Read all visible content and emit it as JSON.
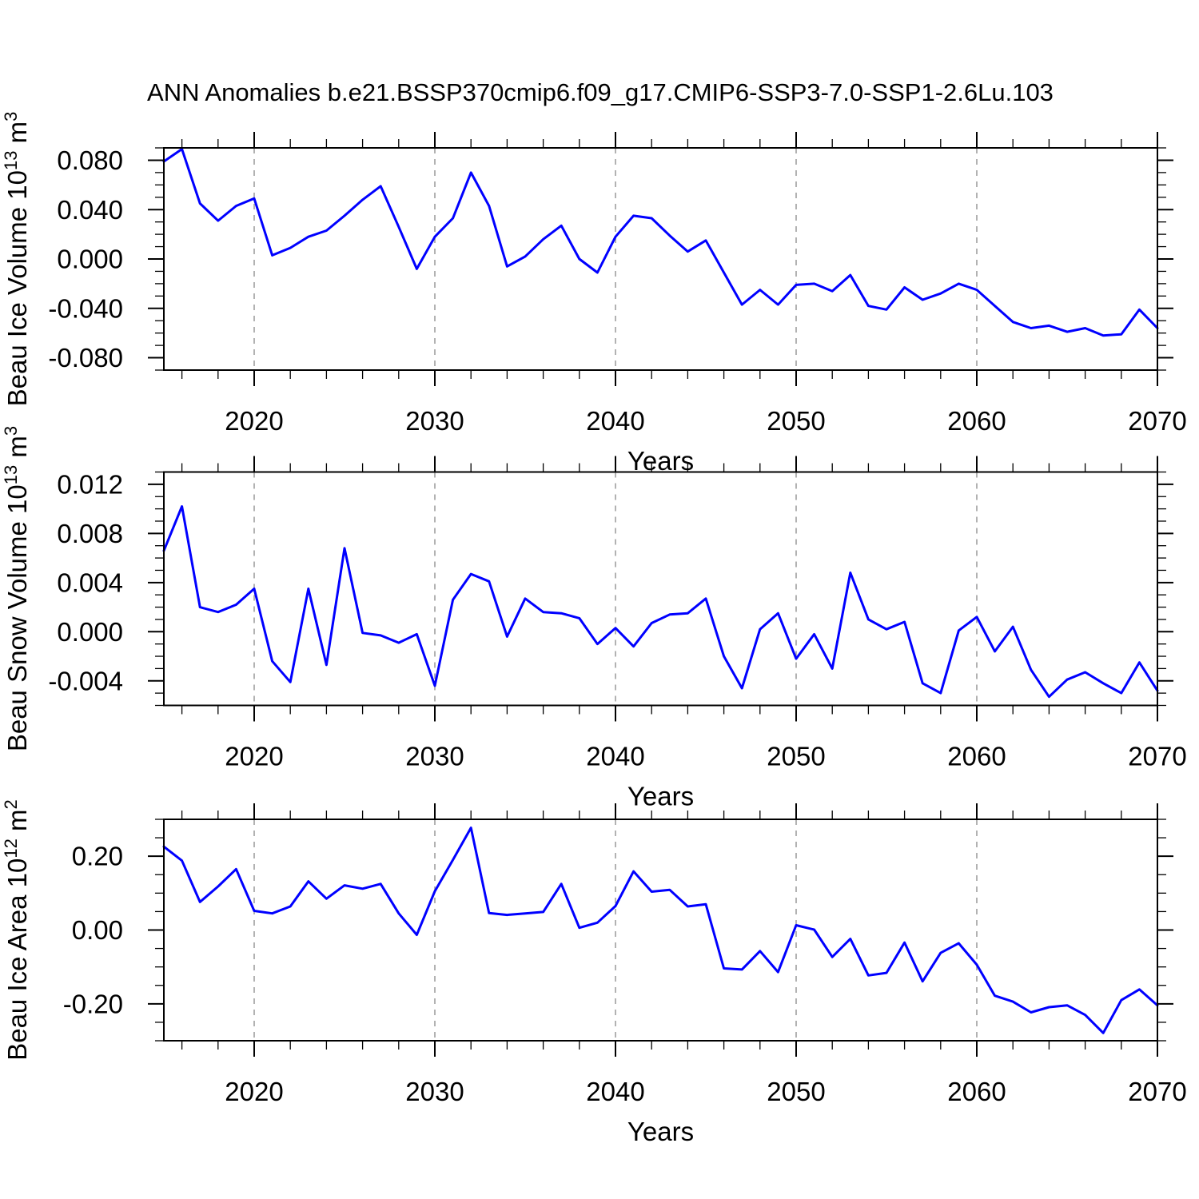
{
  "title": "ANN Anomalies b.e21.BSSP370cmip6.f09_g17.CMIP6-SSP3-7.0-SSP1-2.6Lu.103",
  "line_color": "#0000ff",
  "grid_color": "#999999",
  "frame_color": "#000000",
  "chart_data": [
    {
      "type": "line",
      "name": "beau-ice-volume",
      "ylabel_text": "Beau Ice Volume 10^13 m^3",
      "ylabel_parts": [
        {
          "t": "Beau Ice Volume 10"
        },
        {
          "t": "13",
          "sup": true
        },
        {
          "t": " m"
        },
        {
          "t": "3",
          "sup": true
        }
      ],
      "xlabel": "Years",
      "x": [
        2015,
        2016,
        2017,
        2018,
        2019,
        2020,
        2021,
        2022,
        2023,
        2024,
        2025,
        2026,
        2027,
        2028,
        2029,
        2030,
        2031,
        2032,
        2033,
        2034,
        2035,
        2036,
        2037,
        2038,
        2039,
        2040,
        2041,
        2042,
        2043,
        2044,
        2045,
        2046,
        2047,
        2048,
        2049,
        2050,
        2051,
        2052,
        2053,
        2054,
        2055,
        2056,
        2057,
        2058,
        2059,
        2060,
        2061,
        2062,
        2063,
        2064,
        2065,
        2066,
        2067,
        2068,
        2069,
        2070
      ],
      "values": [
        0.079,
        0.089,
        0.045,
        0.031,
        0.043,
        0.049,
        0.003,
        0.009,
        0.018,
        0.023,
        0.035,
        0.048,
        0.059,
        0.026,
        -0.008,
        0.018,
        0.033,
        0.07,
        0.043,
        -0.006,
        0.002,
        0.016,
        0.027,
        0.0,
        -0.011,
        0.018,
        0.035,
        0.033,
        0.019,
        0.006,
        0.015,
        -0.011,
        -0.037,
        -0.025,
        -0.037,
        -0.021,
        -0.02,
        -0.026,
        -0.013,
        -0.038,
        -0.041,
        -0.023,
        -0.033,
        -0.028,
        -0.02,
        -0.025,
        -0.038,
        -0.051,
        -0.056,
        -0.054,
        -0.059,
        -0.056,
        -0.062,
        -0.061,
        -0.041,
        -0.056
      ],
      "ylim": [
        -0.09,
        0.09
      ],
      "ytick_values": [
        0.08,
        0.04,
        0.0,
        -0.04,
        -0.08
      ],
      "ytick_labels": [
        "0.080",
        "0.040",
        "0.000",
        "-0.040",
        "-0.080"
      ],
      "y_minor_step": 0.01,
      "xlim": [
        2015,
        2070
      ],
      "xtick_values": [
        2020,
        2030,
        2040,
        2050,
        2060,
        2070
      ],
      "xtick_labels": [
        "2020",
        "2030",
        "2040",
        "2050",
        "2060",
        "2070"
      ],
      "x_minor_step": 2,
      "grid_x": [
        2020,
        2030,
        2040,
        2050,
        2060
      ]
    },
    {
      "type": "line",
      "name": "beau-snow-volume",
      "ylabel_text": "Beau Snow Volume 10^13 m^3",
      "ylabel_parts": [
        {
          "t": "Beau Snow Volume 10"
        },
        {
          "t": "13",
          "sup": true
        },
        {
          "t": " m"
        },
        {
          "t": "3",
          "sup": true
        }
      ],
      "xlabel": "Years",
      "x": [
        2015,
        2016,
        2017,
        2018,
        2019,
        2020,
        2021,
        2022,
        2023,
        2024,
        2025,
        2026,
        2027,
        2028,
        2029,
        2030,
        2031,
        2032,
        2033,
        2034,
        2035,
        2036,
        2037,
        2038,
        2039,
        2040,
        2041,
        2042,
        2043,
        2044,
        2045,
        2046,
        2047,
        2048,
        2049,
        2050,
        2051,
        2052,
        2053,
        2054,
        2055,
        2056,
        2057,
        2058,
        2059,
        2060,
        2061,
        2062,
        2063,
        2064,
        2065,
        2066,
        2067,
        2068,
        2069,
        2070
      ],
      "values": [
        0.0066,
        0.0102,
        0.002,
        0.0016,
        0.0022,
        0.0035,
        -0.0024,
        -0.0041,
        0.0035,
        -0.0027,
        0.0068,
        -0.0001,
        -0.0003,
        -0.0009,
        -0.0002,
        -0.0044,
        0.0026,
        0.0047,
        0.0041,
        -0.0004,
        0.0027,
        0.0016,
        0.0015,
        0.0011,
        -0.001,
        0.0003,
        -0.0012,
        0.0007,
        0.0014,
        0.0015,
        0.0027,
        -0.002,
        -0.0046,
        0.0002,
        0.0015,
        -0.0022,
        -0.0002,
        -0.003,
        0.0048,
        0.001,
        0.0002,
        0.0008,
        -0.0042,
        -0.005,
        0.0001,
        0.0012,
        -0.0016,
        0.0004,
        -0.0031,
        -0.0053,
        -0.0039,
        -0.0033,
        -0.0042,
        -0.005,
        -0.0025,
        -0.0048
      ],
      "ylim": [
        -0.006,
        0.013
      ],
      "ytick_values": [
        0.012,
        0.008,
        0.004,
        0.0,
        -0.004
      ],
      "ytick_labels": [
        "0.012",
        "0.008",
        "0.004",
        "0.000",
        "-0.004"
      ],
      "y_minor_step": 0.001,
      "xlim": [
        2015,
        2070
      ],
      "xtick_values": [
        2020,
        2030,
        2040,
        2050,
        2060,
        2070
      ],
      "xtick_labels": [
        "2020",
        "2030",
        "2040",
        "2050",
        "2060",
        "2070"
      ],
      "x_minor_step": 2,
      "grid_x": [
        2020,
        2030,
        2040,
        2050,
        2060
      ]
    },
    {
      "type": "line",
      "name": "beau-ice-area",
      "ylabel_text": "Beau Ice Area 10^12 m^2",
      "ylabel_parts": [
        {
          "t": "Beau Ice Area 10"
        },
        {
          "t": "12",
          "sup": true
        },
        {
          "t": " m"
        },
        {
          "t": "2",
          "sup": true
        }
      ],
      "xlabel": "Years",
      "x": [
        2015,
        2016,
        2017,
        2018,
        2019,
        2020,
        2021,
        2022,
        2023,
        2024,
        2025,
        2026,
        2027,
        2028,
        2029,
        2030,
        2031,
        2032,
        2033,
        2034,
        2035,
        2036,
        2037,
        2038,
        2039,
        2040,
        2041,
        2042,
        2043,
        2044,
        2045,
        2046,
        2047,
        2048,
        2049,
        2050,
        2051,
        2052,
        2053,
        2054,
        2055,
        2056,
        2057,
        2058,
        2059,
        2060,
        2061,
        2062,
        2063,
        2064,
        2065,
        2066,
        2067,
        2068,
        2069,
        2070
      ],
      "values": [
        0.226,
        0.188,
        0.076,
        0.118,
        0.165,
        0.052,
        0.045,
        0.064,
        0.132,
        0.085,
        0.121,
        0.112,
        0.125,
        0.045,
        -0.013,
        0.105,
        0.19,
        0.277,
        0.046,
        0.041,
        0.045,
        0.049,
        0.125,
        0.006,
        0.02,
        0.065,
        0.159,
        0.104,
        0.109,
        0.064,
        0.07,
        -0.104,
        -0.107,
        -0.057,
        -0.114,
        0.013,
        0.001,
        -0.073,
        -0.024,
        -0.123,
        -0.116,
        -0.034,
        -0.139,
        -0.062,
        -0.036,
        -0.094,
        -0.178,
        -0.194,
        -0.223,
        -0.209,
        -0.204,
        -0.23,
        -0.279,
        -0.19,
        -0.161,
        -0.204
      ],
      "ylim": [
        -0.3,
        0.3
      ],
      "ytick_values": [
        0.2,
        0.0,
        -0.2
      ],
      "ytick_labels": [
        "0.20",
        "0.00",
        "-0.20"
      ],
      "y_minor_step": 0.05,
      "xlim": [
        2015,
        2070
      ],
      "xtick_values": [
        2020,
        2030,
        2040,
        2050,
        2060,
        2070
      ],
      "xtick_labels": [
        "2020",
        "2030",
        "2040",
        "2050",
        "2060",
        "2070"
      ],
      "x_minor_step": 2,
      "grid_x": [
        2020,
        2030,
        2040,
        2050,
        2060
      ]
    }
  ]
}
